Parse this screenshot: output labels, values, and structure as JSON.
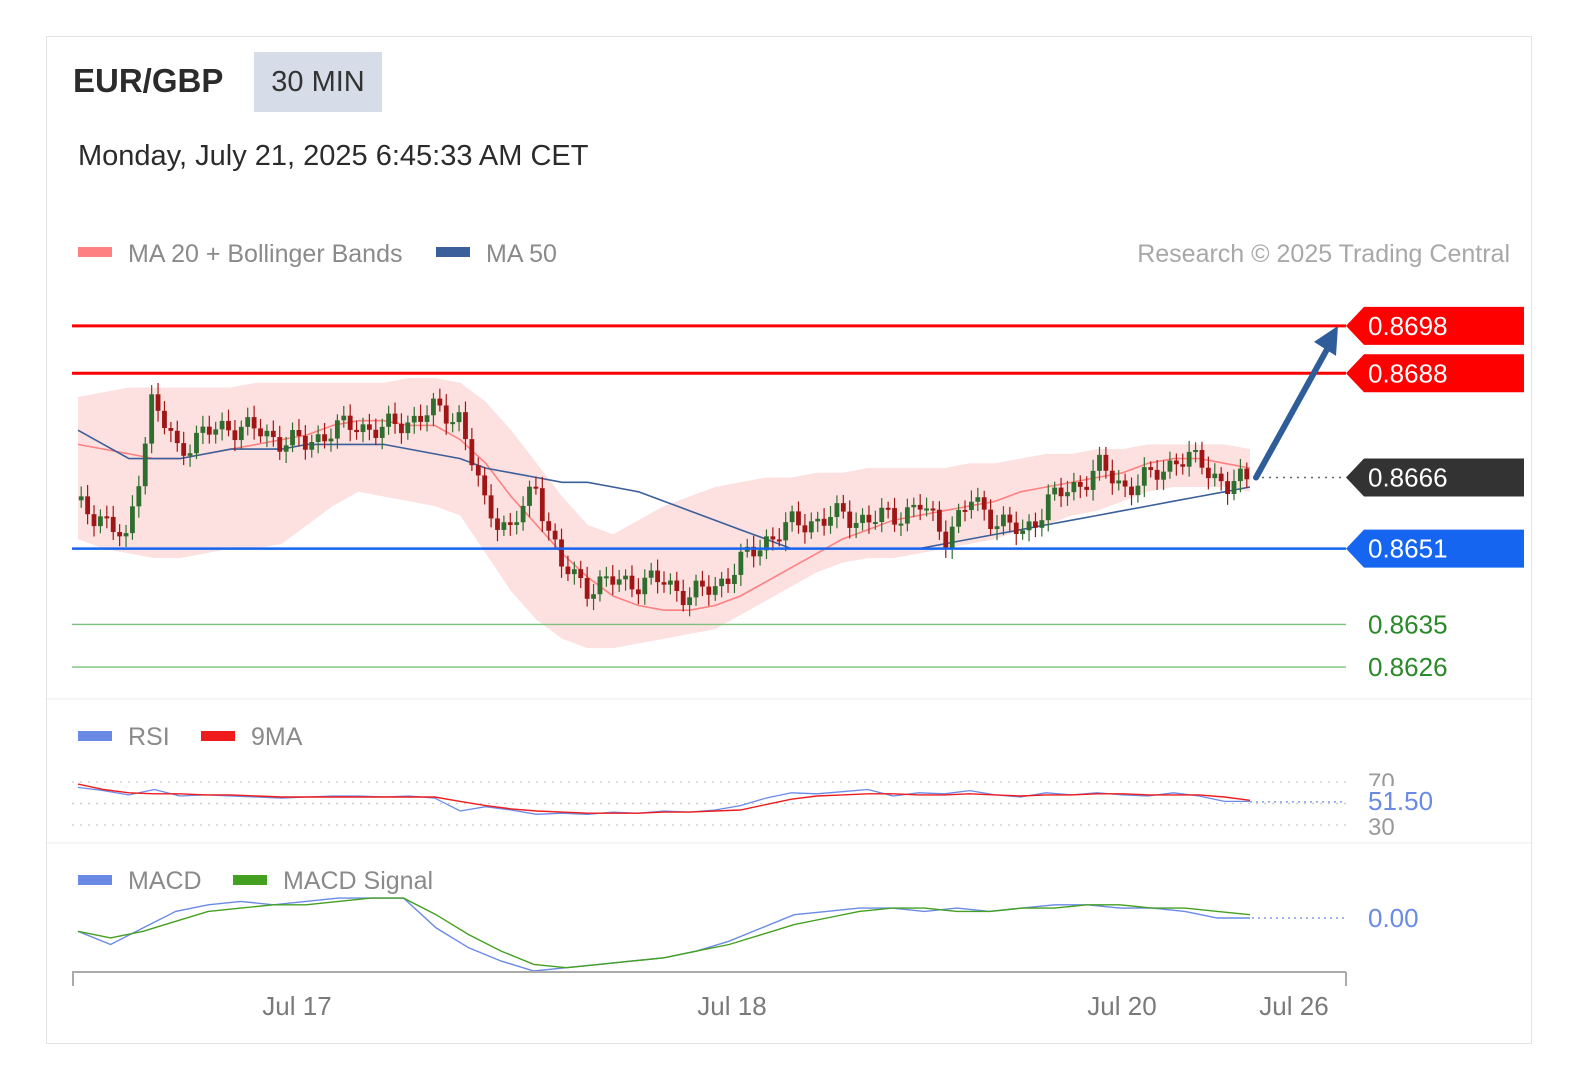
{
  "header": {
    "symbol": "EUR/GBP",
    "timeframe": "30 MIN",
    "datetime": "Monday, July 21, 2025 6:45:33 AM CET"
  },
  "legend": {
    "ma20_label": "MA 20 + Bollinger Bands",
    "ma50_label": "MA 50",
    "credit": "Research © 2025 Trading Central",
    "rsi_label": "RSI",
    "rsi_ma_label": "9MA",
    "macd_label": "MACD",
    "macd_signal_label": "MACD Signal"
  },
  "colors": {
    "resistance": "#ff0000",
    "support": "#1565f0",
    "target": "#2a8a2a",
    "last_price": "#333333",
    "ma20": "#ff8080",
    "ma50": "#3a5f9a",
    "band_fill": "#fde0e0",
    "candle_up": "#2e6e2e",
    "candle_down": "#a01616",
    "rsi": "#6a8ae6",
    "rsi_ma": "#ee1c1c",
    "macd": "#6a8ae6",
    "macd_signal": "#44a020",
    "arrow": "#2e5d9a"
  },
  "chart_data": [
    {
      "type": "candlestick",
      "panel": "price",
      "y_range": [
        0.8618,
        0.8706
      ],
      "x_labels": [
        "Jul 17",
        "Jul 18",
        "Jul 20",
        "Jul 26"
      ],
      "levels": {
        "resistance": [
          "0.8698",
          "0.8688"
        ],
        "last": "0.8666",
        "support": "0.8651",
        "targets": [
          "0.8635",
          "0.8626"
        ]
      },
      "series": [
        {
          "name": "MA 20",
          "values": [
            0.8673,
            0.8672,
            0.8671,
            0.867,
            0.867,
            0.8671,
            0.8672,
            0.8673,
            0.8674,
            0.8675,
            0.8677,
            0.8678,
            0.8678,
            0.8677,
            0.8677,
            0.8674,
            0.8669,
            0.8662,
            0.8656,
            0.865,
            0.8645,
            0.8641,
            0.8639,
            0.8638,
            0.8638,
            0.8639,
            0.8641,
            0.8644,
            0.8647,
            0.865,
            0.8653,
            0.8655,
            0.8657,
            0.8658,
            0.8659,
            0.866,
            0.8661,
            0.8663,
            0.8664,
            0.8665,
            0.8666,
            0.8667,
            0.8669,
            0.867,
            0.867,
            0.8669,
            0.8668
          ]
        },
        {
          "name": "Upper Band",
          "values": [
            0.8683,
            0.8684,
            0.8685,
            0.8685,
            0.8685,
            0.8685,
            0.8685,
            0.8686,
            0.8686,
            0.8686,
            0.8686,
            0.8686,
            0.8686,
            0.8687,
            0.8687,
            0.8686,
            0.8682,
            0.8676,
            0.8669,
            0.8662,
            0.8656,
            0.8654,
            0.8657,
            0.866,
            0.8662,
            0.8664,
            0.8665,
            0.8666,
            0.8666,
            0.8667,
            0.8667,
            0.8668,
            0.8668,
            0.8668,
            0.8668,
            0.8669,
            0.8669,
            0.867,
            0.8671,
            0.8671,
            0.8672,
            0.8672,
            0.8673,
            0.8673,
            0.8673,
            0.8673,
            0.8672
          ]
        },
        {
          "name": "Lower Band",
          "values": [
            0.8653,
            0.8651,
            0.865,
            0.8649,
            0.8649,
            0.865,
            0.8651,
            0.8651,
            0.8652,
            0.8656,
            0.866,
            0.8663,
            0.8662,
            0.8661,
            0.866,
            0.8658,
            0.865,
            0.8642,
            0.8636,
            0.8632,
            0.863,
            0.863,
            0.8631,
            0.8632,
            0.8633,
            0.8634,
            0.8637,
            0.864,
            0.8643,
            0.8646,
            0.8648,
            0.8649,
            0.8649,
            0.865,
            0.8651,
            0.8652,
            0.8653,
            0.8655,
            0.8656,
            0.8658,
            0.8659,
            0.8661,
            0.8663,
            0.8664,
            0.8664,
            0.8664,
            0.8663
          ]
        },
        {
          "name": "MA 50",
          "values": [
            0.8676,
            0.8673,
            0.867,
            0.867,
            0.867,
            0.8671,
            0.8672,
            0.8672,
            0.8672,
            0.8673,
            0.8673,
            0.8673,
            0.8673,
            0.8672,
            0.8671,
            0.867,
            0.8668,
            0.8667,
            0.8666,
            0.8665,
            0.8665,
            0.8664,
            0.8663,
            0.8661,
            0.8659,
            0.8657,
            0.8655,
            0.8653,
            0.8651,
            0.8651,
            0.8651,
            0.8651,
            0.8651,
            0.8651,
            0.8652,
            0.8653,
            0.8654,
            0.8655,
            0.8656,
            0.8657,
            0.8658,
            0.8659,
            0.866,
            0.8661,
            0.8662,
            0.8663,
            0.8664
          ]
        },
        {
          "name": "Close",
          "values": [
            0.866,
            0.8658,
            0.8652,
            0.8682,
            0.8672,
            0.8675,
            0.8677,
            0.8676,
            0.8674,
            0.8673,
            0.8676,
            0.8677,
            0.8676,
            0.8678,
            0.868,
            0.8679,
            0.866,
            0.8655,
            0.8664,
            0.8647,
            0.8643,
            0.8644,
            0.8644,
            0.8644,
            0.8641,
            0.8643,
            0.8648,
            0.8653,
            0.8656,
            0.8657,
            0.8658,
            0.8657,
            0.8658,
            0.866,
            0.8654,
            0.8661,
            0.8657,
            0.8654,
            0.8661,
            0.8664,
            0.8668,
            0.8664,
            0.8666,
            0.867,
            0.8669,
            0.8664,
            0.8666
          ]
        }
      ]
    },
    {
      "type": "line",
      "panel": "RSI",
      "y_range": [
        30,
        70
      ],
      "levels": [
        "70",
        "30"
      ],
      "last": "51.50",
      "series": [
        {
          "name": "RSI",
          "values": [
            65,
            62,
            58,
            63,
            57,
            58,
            57,
            56,
            55,
            56,
            57,
            57,
            56,
            57,
            55,
            43,
            47,
            44,
            40,
            41,
            40,
            42,
            41,
            43,
            42,
            44,
            48,
            55,
            60,
            59,
            61,
            63,
            57,
            60,
            59,
            62,
            58,
            56,
            60,
            58,
            60,
            58,
            57,
            60,
            57,
            52,
            52
          ]
        },
        {
          "name": "9MA",
          "values": [
            68,
            63,
            60,
            59,
            59,
            58,
            58,
            57,
            56,
            56,
            56,
            56,
            56,
            56,
            56,
            52,
            48,
            45,
            43,
            42,
            41,
            41,
            41,
            42,
            42,
            43,
            44,
            49,
            54,
            57,
            58,
            59,
            59,
            58,
            58,
            59,
            58,
            57,
            58,
            58,
            59,
            59,
            58,
            58,
            58,
            56,
            53
          ]
        }
      ]
    },
    {
      "type": "line",
      "panel": "MACD",
      "last": "0.00",
      "series": [
        {
          "name": "MACD",
          "values": [
            -0.0004,
            -0.0008,
            -0.0003,
            0.0002,
            0.0004,
            0.0005,
            0.0004,
            0.0005,
            0.0006,
            0.0006,
            0.0006,
            -0.0003,
            -0.0009,
            -0.0013,
            -0.0016,
            -0.0015,
            -0.0014,
            -0.0013,
            -0.0012,
            -0.001,
            -0.0007,
            -0.0003,
            0.0001,
            0.0002,
            0.0003,
            0.0003,
            0.0002,
            0.0003,
            0.0002,
            0.0003,
            0.0004,
            0.0004,
            0.0003,
            0.0003,
            0.0002,
            0.0,
            0.0
          ]
        },
        {
          "name": "MACD Signal",
          "values": [
            -0.0004,
            -0.0006,
            -0.0004,
            -0.0001,
            0.0002,
            0.0003,
            0.0004,
            0.0004,
            0.0005,
            0.0006,
            0.0006,
            0.0001,
            -0.0005,
            -0.001,
            -0.0014,
            -0.0015,
            -0.0014,
            -0.0013,
            -0.0012,
            -0.001,
            -0.0008,
            -0.0005,
            -0.0002,
            0.0,
            0.0002,
            0.0003,
            0.0003,
            0.0002,
            0.0002,
            0.0003,
            0.0003,
            0.0004,
            0.0004,
            0.0003,
            0.0003,
            0.0002,
            0.0001
          ]
        }
      ]
    }
  ]
}
